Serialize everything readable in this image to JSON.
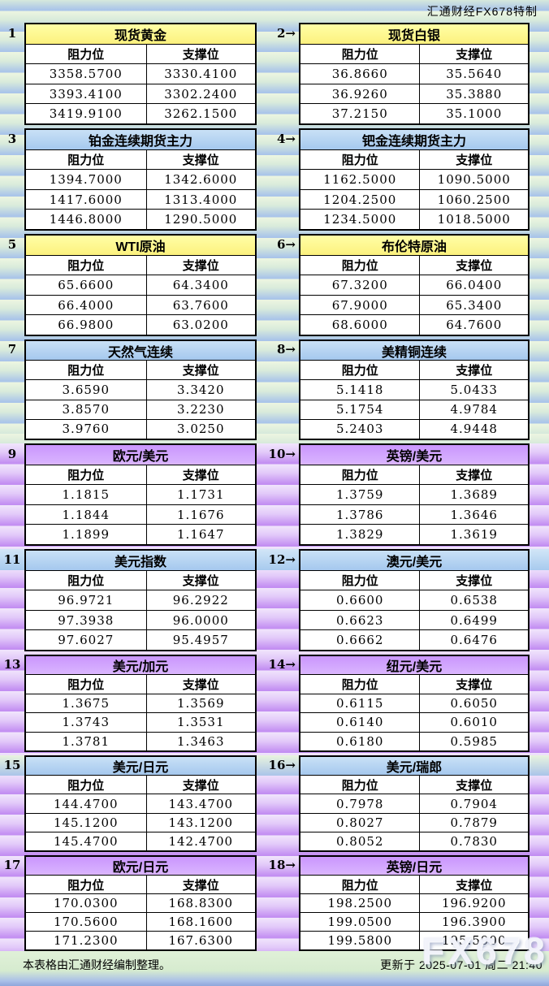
{
  "page": {
    "brand_caption": "汇通财经FX678特制",
    "footer_note": "本表格由汇通财经编制整理。",
    "footer_update": "更新于 2025-07-01 周二 21:40",
    "watermark": "FX678"
  },
  "labels": {
    "resistance": "阻力位",
    "support": "支撑位"
  },
  "colors": {
    "commodity_header_yellow": "#ffff99",
    "metal_header_blue": "#aecdf0",
    "fx_header_purple": "#cc99ff",
    "footer_band_green": "#d6ebcf",
    "band_blue": "#aac5e9",
    "band_purple": "#c38ff2"
  },
  "panels": [
    {
      "label": "1",
      "title": "现货黄金",
      "theme": "yellow",
      "rows": [
        [
          "3358.5700",
          "3330.4100"
        ],
        [
          "3393.4100",
          "3302.2400"
        ],
        [
          "3419.9100",
          "3262.1500"
        ]
      ]
    },
    {
      "label": "2→",
      "title": "现货白银",
      "theme": "yellow",
      "rows": [
        [
          "36.8660",
          "35.5640"
        ],
        [
          "36.9260",
          "35.3880"
        ],
        [
          "37.2150",
          "35.1000"
        ]
      ]
    },
    {
      "label": "3",
      "title": "铂金连续期货主力",
      "theme": "blue",
      "rows": [
        [
          "1394.7000",
          "1342.6000"
        ],
        [
          "1417.6000",
          "1313.4000"
        ],
        [
          "1446.8000",
          "1290.5000"
        ]
      ]
    },
    {
      "label": "4→",
      "title": "钯金连续期货主力",
      "theme": "blue",
      "rows": [
        [
          "1162.5000",
          "1090.5000"
        ],
        [
          "1204.2500",
          "1060.2500"
        ],
        [
          "1234.5000",
          "1018.5000"
        ]
      ]
    },
    {
      "label": "5",
      "title": "WTI原油",
      "theme": "yellow",
      "rows": [
        [
          "65.6600",
          "64.3400"
        ],
        [
          "66.4000",
          "63.7600"
        ],
        [
          "66.9800",
          "63.0200"
        ]
      ]
    },
    {
      "label": "6→",
      "title": "布伦特原油",
      "theme": "yellow",
      "rows": [
        [
          "67.3200",
          "66.0400"
        ],
        [
          "67.9000",
          "65.3400"
        ],
        [
          "68.6000",
          "64.7600"
        ]
      ]
    },
    {
      "label": "7",
      "title": "天然气连续",
      "theme": "blue",
      "rows": [
        [
          "3.6590",
          "3.3420"
        ],
        [
          "3.8570",
          "3.2230"
        ],
        [
          "3.9760",
          "3.0250"
        ]
      ]
    },
    {
      "label": "8→",
      "title": "美精铜连续",
      "theme": "blue",
      "rows": [
        [
          "5.1418",
          "5.0433"
        ],
        [
          "5.1754",
          "4.9784"
        ],
        [
          "5.2403",
          "4.9448"
        ]
      ]
    },
    {
      "label": "9",
      "title": "欧元/美元",
      "theme": "purple",
      "rows": [
        [
          "1.1815",
          "1.1731"
        ],
        [
          "1.1844",
          "1.1676"
        ],
        [
          "1.1899",
          "1.1647"
        ]
      ]
    },
    {
      "label": "10→",
      "title": "英镑/美元",
      "theme": "purple",
      "rows": [
        [
          "1.3759",
          "1.3689"
        ],
        [
          "1.3786",
          "1.3646"
        ],
        [
          "1.3829",
          "1.3619"
        ]
      ]
    },
    {
      "label": "11",
      "title": "美元指数",
      "theme": "blue",
      "rows": [
        [
          "96.9721",
          "96.2922"
        ],
        [
          "97.3938",
          "96.0000"
        ],
        [
          "97.6027",
          "95.4957"
        ]
      ]
    },
    {
      "label": "12→",
      "title": "澳元/美元",
      "theme": "blue",
      "rows": [
        [
          "0.6600",
          "0.6538"
        ],
        [
          "0.6623",
          "0.6499"
        ],
        [
          "0.6662",
          "0.6476"
        ]
      ]
    },
    {
      "label": "13",
      "title": "美元/加元",
      "theme": "purple",
      "rows": [
        [
          "1.3675",
          "1.3569"
        ],
        [
          "1.3743",
          "1.3531"
        ],
        [
          "1.3781",
          "1.3463"
        ]
      ]
    },
    {
      "label": "14→",
      "title": "纽元/美元",
      "theme": "purple",
      "rows": [
        [
          "0.6115",
          "0.6050"
        ],
        [
          "0.6140",
          "0.6010"
        ],
        [
          "0.6180",
          "0.5985"
        ]
      ]
    },
    {
      "label": "15",
      "title": "美元/日元",
      "theme": "blue",
      "rows": [
        [
          "144.4700",
          "143.4700"
        ],
        [
          "145.1200",
          "143.1200"
        ],
        [
          "145.4700",
          "142.4700"
        ]
      ]
    },
    {
      "label": "16→",
      "title": "美元/瑞郎",
      "theme": "blue",
      "rows": [
        [
          "0.7978",
          "0.7904"
        ],
        [
          "0.8027",
          "0.7879"
        ],
        [
          "0.8052",
          "0.7830"
        ]
      ]
    },
    {
      "label": "17",
      "title": "欧元/日元",
      "theme": "purple",
      "rows": [
        [
          "170.0300",
          "168.8300"
        ],
        [
          "170.5600",
          "168.1600"
        ],
        [
          "171.2300",
          "167.6300"
        ]
      ]
    },
    {
      "label": "18→",
      "title": "英镑/日元",
      "theme": "purple",
      "rows": [
        [
          "198.2500",
          "196.9200"
        ],
        [
          "199.0500",
          "196.3900"
        ],
        [
          "199.5800",
          "195.5900"
        ]
      ]
    }
  ]
}
